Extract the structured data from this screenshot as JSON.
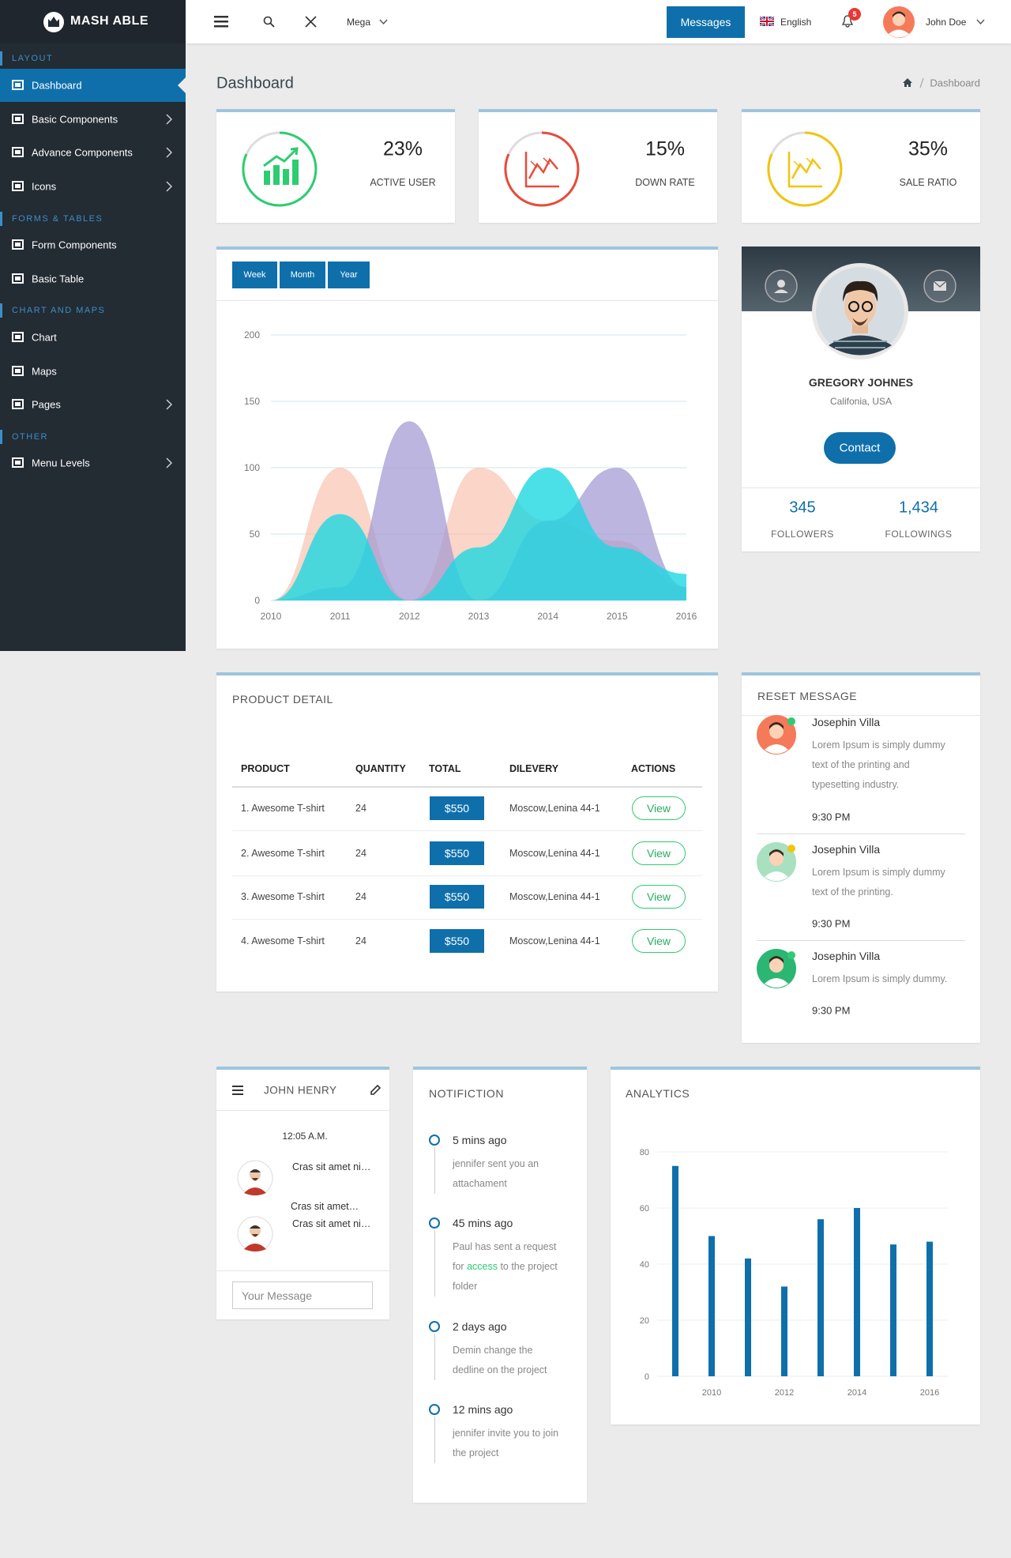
{
  "brand": "MASH ABLE",
  "sidebar": [
    {
      "title": "LAYOUT",
      "items": [
        {
          "label": "Dashboard",
          "active": true
        },
        {
          "label": "Basic Components",
          "submenu": true
        },
        {
          "label": "Advance Components",
          "submenu": true
        },
        {
          "label": "Icons",
          "submenu": true
        }
      ]
    },
    {
      "title": "FORMS & TABLES",
      "items": [
        {
          "label": "Form Components"
        },
        {
          "label": "Basic Table"
        }
      ]
    },
    {
      "title": "CHART AND MAPS",
      "items": [
        {
          "label": "Chart"
        },
        {
          "label": "Maps"
        },
        {
          "label": "Pages",
          "submenu": true
        }
      ]
    },
    {
      "title": "OTHER",
      "items": [
        {
          "label": "Menu Levels",
          "submenu": true
        }
      ]
    }
  ],
  "topbar": {
    "mega": "Mega",
    "messages": "Messages",
    "language": "English",
    "notifications": "5",
    "user": "John Doe"
  },
  "page": {
    "title": "Dashboard",
    "breadcrumb": "Dashboard"
  },
  "stats": [
    {
      "value": "23%",
      "label": "ACTIVE USER",
      "color": "#2ecc71"
    },
    {
      "value": "15%",
      "label": "DOWN RATE",
      "color": "#e74c3c"
    },
    {
      "value": "35%",
      "label": "SALE RATIO",
      "color": "#f1c40f"
    }
  ],
  "chart_data": [
    {
      "type": "area",
      "buttons": [
        "Week",
        "Month",
        "Year"
      ],
      "categories": [
        "2010",
        "2011",
        "2012",
        "2013",
        "2014",
        "2015",
        "2016"
      ],
      "series": [
        {
          "color": "rgba(248,190,170,0.65)",
          "values": [
            0,
            100,
            0,
            100,
            60,
            45,
            10
          ]
        },
        {
          "color": "rgba(160,150,210,0.7)",
          "values": [
            0,
            10,
            135,
            0,
            60,
            100,
            10
          ]
        },
        {
          "color": "rgba(30,215,225,0.8)",
          "values": [
            0,
            65,
            0,
            40,
            100,
            40,
            20
          ]
        }
      ],
      "ylim": [
        0,
        200
      ],
      "yticks": [
        0,
        50,
        100,
        150,
        200
      ],
      "grid": true
    },
    {
      "type": "bar",
      "title": "ANALYTICS",
      "x": [
        2009,
        2010,
        2011,
        2012,
        2013,
        2014,
        2015,
        2016
      ],
      "values": [
        75,
        50,
        42,
        32,
        56,
        60,
        47,
        48
      ],
      "color": "#0f6fab",
      "xlim": [
        2008.5,
        2016.5
      ],
      "xticks": [
        2010,
        2012,
        2014,
        2016
      ],
      "ylim": [
        0,
        80
      ],
      "yticks": [
        0,
        20,
        40,
        60,
        80
      ],
      "grid": true
    }
  ],
  "profile": {
    "name": "GREGORY JOHNES",
    "location": "Califonia, USA",
    "button": "Contact",
    "stats": [
      {
        "value": "345",
        "label": "FOLLOWERS"
      },
      {
        "value": "1,434",
        "label": "FOLLOWINGS"
      }
    ]
  },
  "product_detail": {
    "title": "PRODUCT DETAIL",
    "columns": [
      "PRODUCT",
      "QUANTITY",
      "TOTAL",
      "DILEVERY",
      "ACTIONS"
    ],
    "rows": [
      [
        "1. Awesome T-shirt",
        "24",
        "$550",
        "Moscow,Lenina 44-1",
        "View"
      ],
      [
        "2. Awesome T-shirt",
        "24",
        "$550",
        "Moscow,Lenina 44-1",
        "View"
      ],
      [
        "3. Awesome T-shirt",
        "24",
        "$550",
        "Moscow,Lenina 44-1",
        "View"
      ],
      [
        "4. Awesome T-shirt",
        "24",
        "$550",
        "Moscow,Lenina 44-1",
        "View"
      ]
    ]
  },
  "reset_message": {
    "title": "RESET MESSAGE",
    "messages": [
      {
        "name": "Josephin Villa",
        "lines": [
          "Lorem Ipsum is simply dummy",
          "text of the printing and",
          "typesetting industry."
        ],
        "time": "9:30 PM"
      },
      {
        "name": "Josephin Villa",
        "lines": [
          "Lorem Ipsum is simply dummy",
          "text of the printing."
        ],
        "time": "9:30 PM"
      },
      {
        "name": "Josephin Villa",
        "lines": [
          "Lorem Ipsum is simply dummy."
        ],
        "time": "9:30 PM"
      }
    ]
  },
  "chat": {
    "title": "JOHN HENRY",
    "time": "12:05 A.M.",
    "messages": [
      "Cras sit amet ni…",
      "Cras sit amet…",
      "Cras sit amet ni…"
    ],
    "placeholder": "Your Message"
  },
  "notification": {
    "title": "NOTIFICTION",
    "items": [
      {
        "time": "5 mins ago",
        "lines": [
          "jennifer sent you an",
          "attachament"
        ]
      },
      {
        "time": "45 mins ago",
        "lines": [
          "Paul has sent a request",
          [
            "for ",
            "access",
            " to the project"
          ],
          "folder"
        ]
      },
      {
        "time": "2 days ago",
        "lines": [
          "Demin change the",
          "dedline on the project"
        ]
      },
      {
        "time": "12 mins ago",
        "lines": [
          "jennifer invite you to join",
          "the project"
        ]
      }
    ]
  }
}
